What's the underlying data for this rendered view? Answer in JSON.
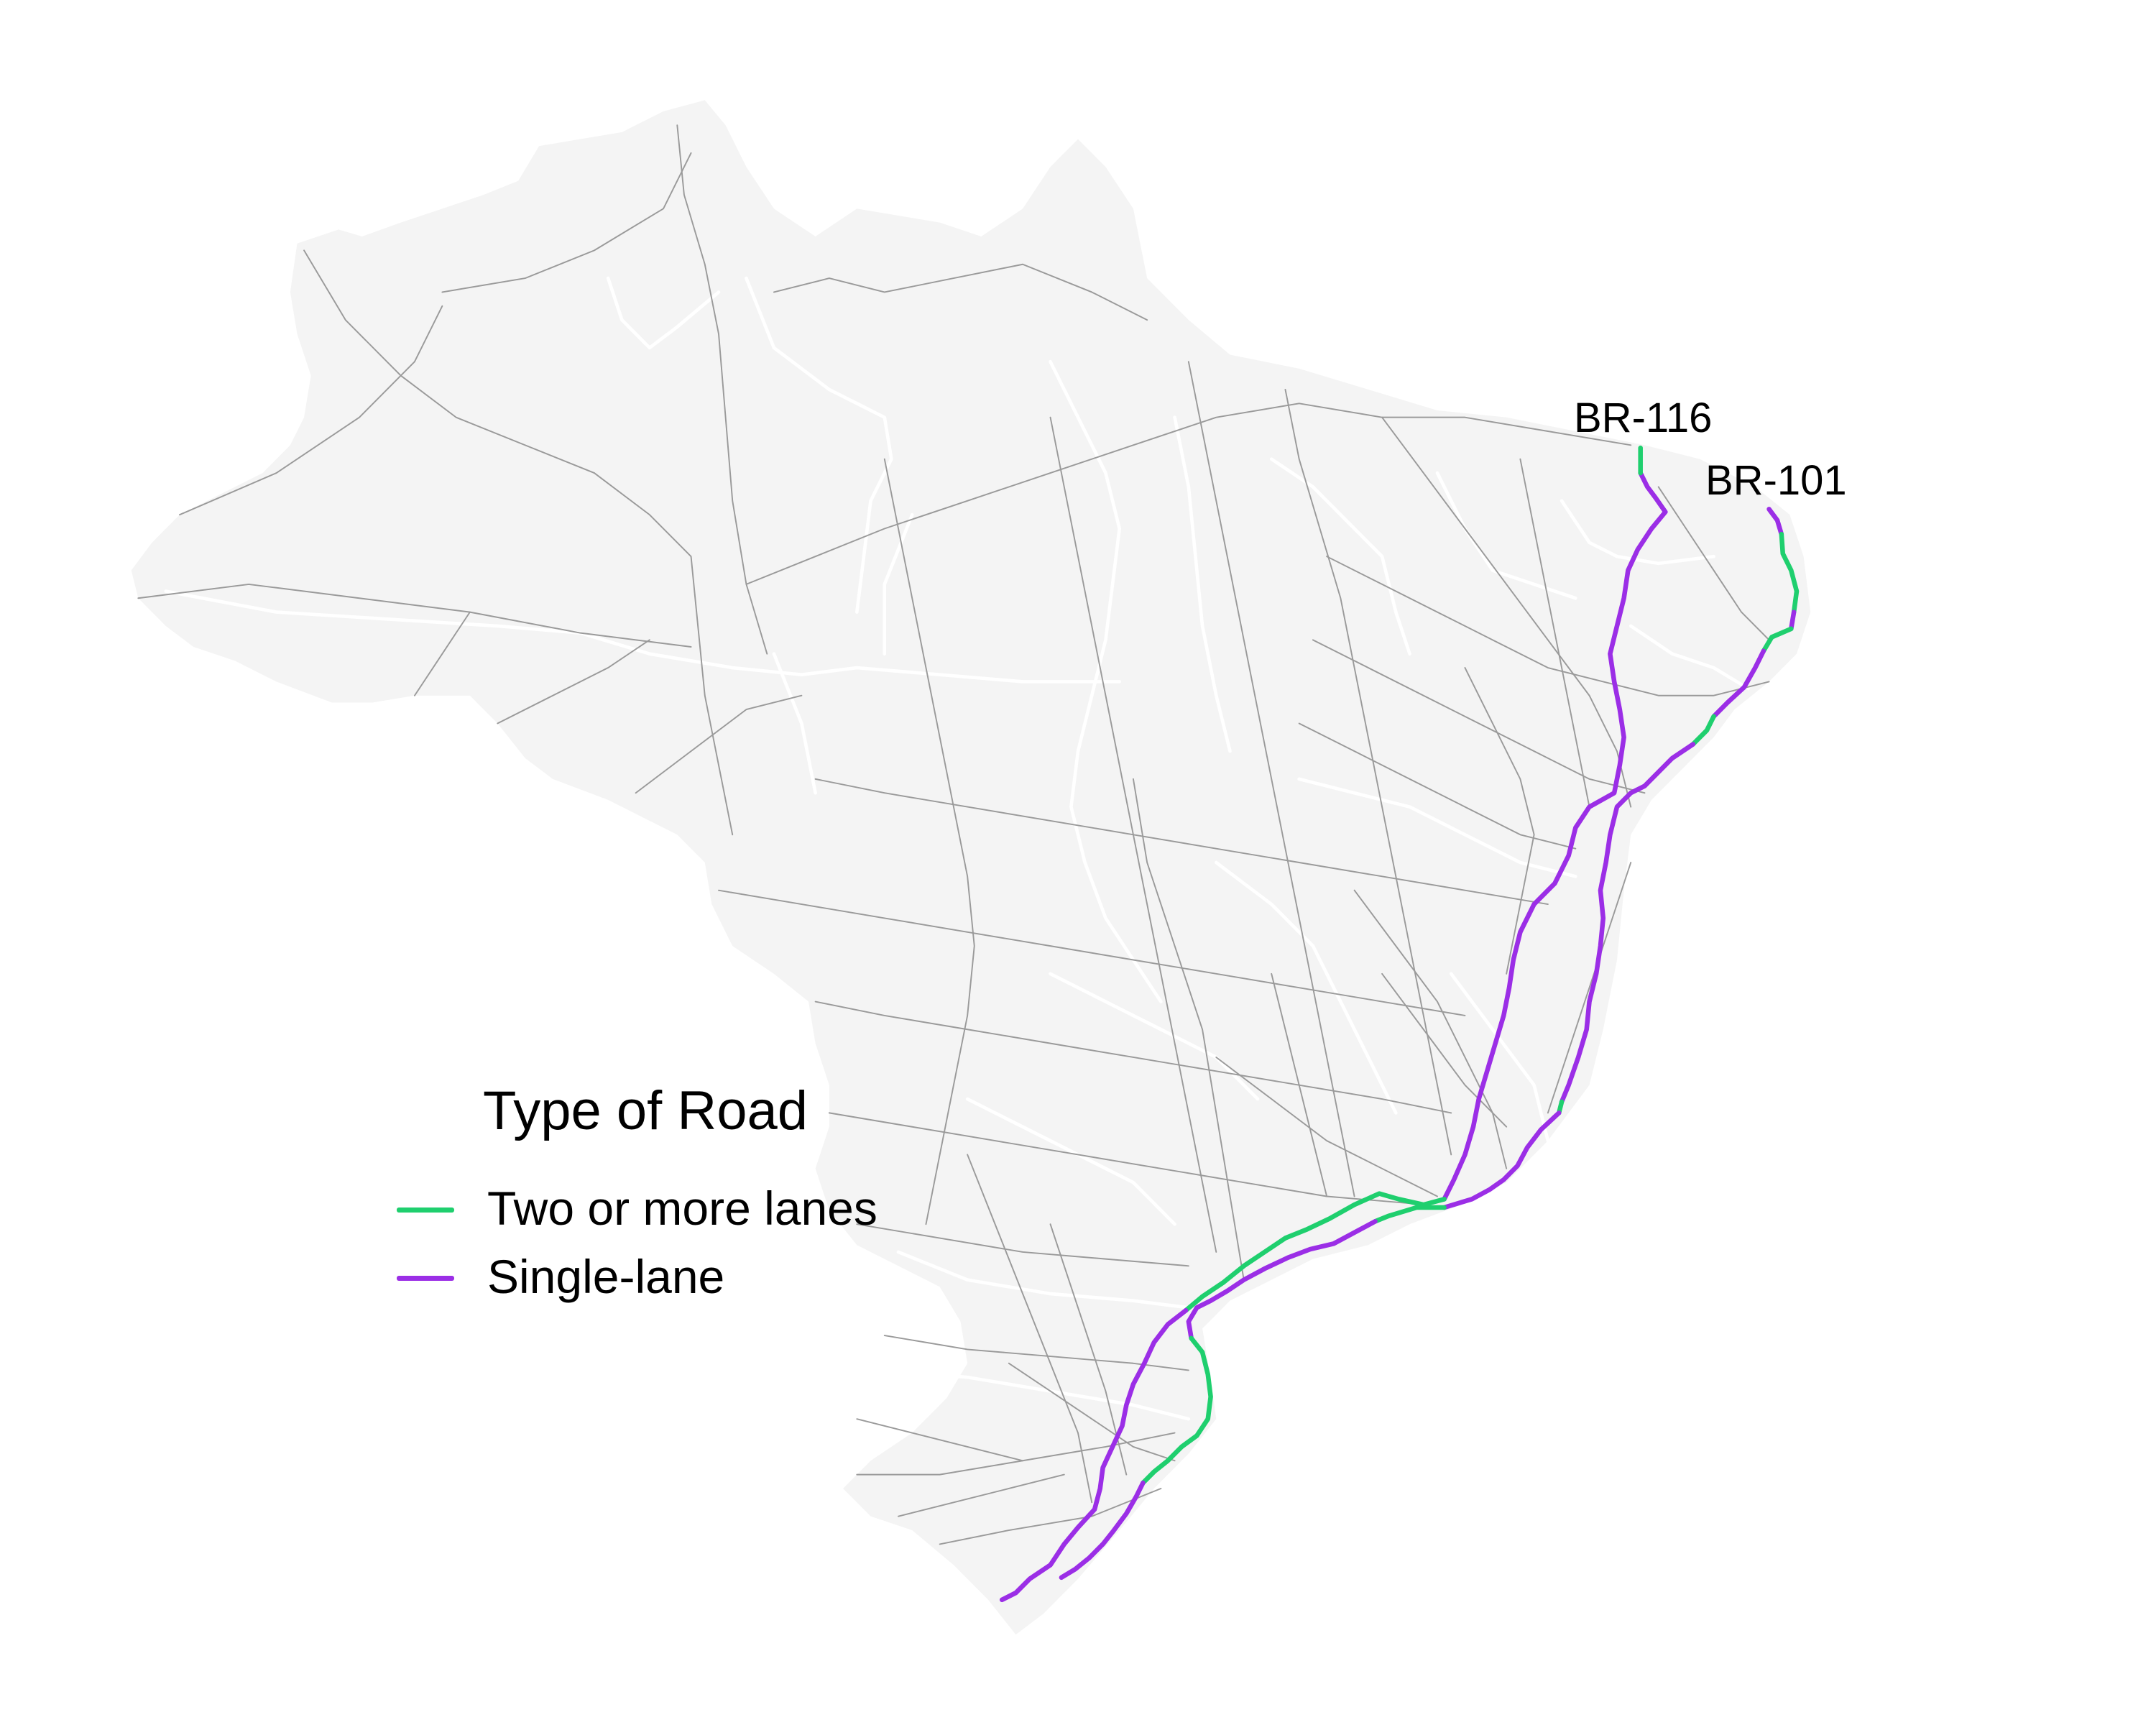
{
  "map": {
    "land_color": "#f4f4f4",
    "road_color": "#9a9a9a",
    "border_color": "#ffffff",
    "labels": {
      "br116": "BR-116",
      "br101": "BR-101"
    }
  },
  "legend": {
    "title": "Type of Road",
    "items": [
      {
        "label": "Two or more lanes",
        "color": "#1fcf6e"
      },
      {
        "label": "Single-lane",
        "color": "#9b2ee6"
      }
    ]
  },
  "colors": {
    "multi_lane": "#1fcf6e",
    "single_lane": "#9b2ee6"
  }
}
